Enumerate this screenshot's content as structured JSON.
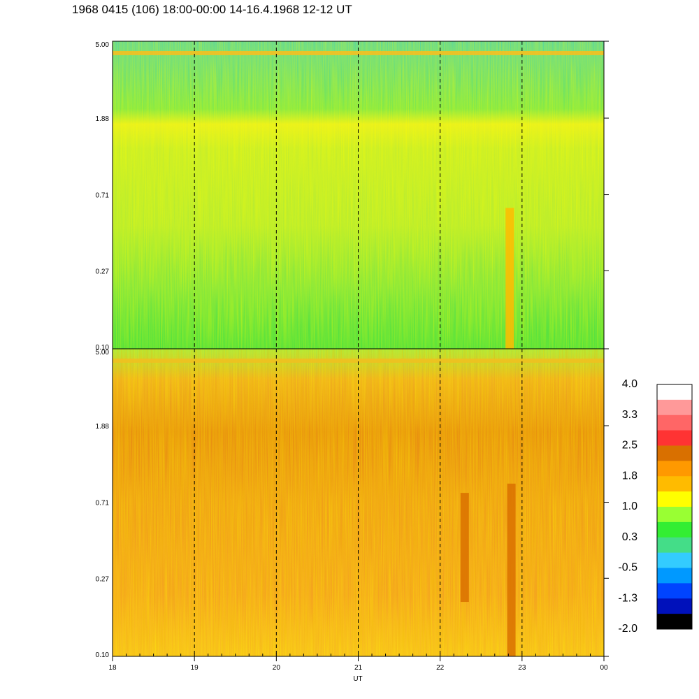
{
  "header": {
    "title": "1968 0415 (106) 18:00-00:00 14-16.4.1968  12-12 UT"
  },
  "chart_data": {
    "type": "heatmap",
    "title": "1968 0415 (106) 18:00-00:00 14-16.4.1968  12-12 UT",
    "xlabel": "UT",
    "x_ticks": [
      "18",
      "19",
      "20",
      "21",
      "22",
      "23",
      "00"
    ],
    "xlim": [
      18,
      24
    ],
    "y_scale": "log",
    "ylim": [
      0.1,
      5.0
    ],
    "y_ticks": [
      "0.10",
      "0.27",
      "0.71",
      "1.88",
      "5.00"
    ],
    "vertical_markers": [
      19,
      20,
      21,
      22,
      23
    ],
    "panels": [
      {
        "name": "upper",
        "dominant_level_range": [
          0.3,
          1.0
        ],
        "bright_band_y": 4.3,
        "features": [
          {
            "x": 22.85,
            "y_range": [
              0.1,
              0.6
            ],
            "level": 1.8
          }
        ]
      },
      {
        "name": "lower",
        "dominant_level_range": [
          1.0,
          2.5
        ],
        "bright_band_y": 4.3,
        "features": [
          {
            "x": 22.87,
            "y_range": [
              0.1,
              0.9
            ],
            "level": 2.5
          },
          {
            "x": 22.3,
            "y_range": [
              0.2,
              0.8
            ],
            "level": 2.5
          }
        ]
      }
    ],
    "colorbar": {
      "labels": [
        "4.0",
        "3.3",
        "2.5",
        "1.8",
        "1.0",
        "0.3",
        "-0.5",
        "-1.3",
        "-2.0"
      ],
      "colors": [
        "#ffffff",
        "#ff9999",
        "#ff6666",
        "#ff3333",
        "#d97000",
        "#ff9900",
        "#ffbb00",
        "#ffff00",
        "#99ff33",
        "#33ee33",
        "#44dd88",
        "#33ccff",
        "#0099ff",
        "#0044ff",
        "#0011bb",
        "#000000"
      ]
    }
  }
}
